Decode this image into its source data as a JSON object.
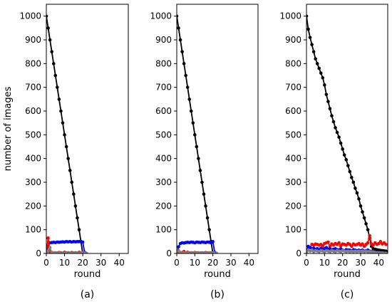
{
  "chart_data": [
    {
      "type": "line",
      "caption": "(a)",
      "xlabel": "round",
      "ylabel": "number of images",
      "xlim": [
        0,
        45
      ],
      "ylim": [
        0,
        1050
      ],
      "xticks": [
        0,
        10,
        20,
        30,
        40
      ],
      "yticks": [
        0,
        100,
        200,
        300,
        400,
        500,
        600,
        700,
        800,
        900,
        1000
      ],
      "grid": false,
      "series": [
        {
          "color": "#000000",
          "x": [
            0,
            1,
            2,
            3,
            4,
            5,
            6,
            7,
            8,
            9,
            10,
            11,
            12,
            13,
            14,
            15,
            16,
            17,
            18,
            19,
            20,
            21,
            22
          ],
          "y": [
            1000,
            950,
            900,
            850,
            800,
            750,
            700,
            650,
            600,
            550,
            500,
            450,
            400,
            350,
            300,
            250,
            200,
            150,
            100,
            50,
            0,
            0,
            0
          ]
        },
        {
          "color": "#0000ff",
          "x": [
            0,
            1,
            2,
            3,
            4,
            5,
            6,
            7,
            8,
            9,
            10,
            11,
            12,
            13,
            14,
            15,
            16,
            17,
            18,
            19,
            20,
            21,
            22
          ],
          "y": [
            0,
            30,
            45,
            46,
            47,
            46,
            48,
            47,
            48,
            49,
            48,
            50,
            49,
            50,
            48,
            50,
            49,
            50,
            50,
            50,
            48,
            5,
            0
          ]
        },
        {
          "color": "#ff0000",
          "x": [
            0,
            1,
            2,
            3,
            4,
            5,
            6,
            7,
            8,
            9,
            10,
            11,
            12,
            13,
            14,
            15,
            16,
            17,
            18,
            19,
            20,
            21,
            22
          ],
          "y": [
            0,
            65,
            5,
            4,
            2,
            3,
            2,
            4,
            3,
            2,
            5,
            2,
            3,
            2,
            4,
            2,
            3,
            2,
            5,
            3,
            2,
            0,
            0
          ]
        },
        {
          "color": "#808080",
          "x": [
            0,
            1,
            2,
            3,
            4,
            5,
            6,
            7,
            8,
            9,
            10,
            11,
            12,
            13,
            14,
            15,
            16,
            17,
            18,
            19,
            20,
            21,
            22
          ],
          "y": [
            0,
            10,
            25,
            4,
            3,
            2,
            1,
            2,
            1,
            2,
            1,
            2,
            1,
            2,
            1,
            2,
            1,
            2,
            1,
            2,
            2,
            2,
            0
          ]
        }
      ]
    },
    {
      "type": "line",
      "caption": "(b)",
      "xlabel": "round",
      "ylabel": "",
      "xlim": [
        0,
        45
      ],
      "ylim": [
        0,
        1050
      ],
      "xticks": [
        0,
        10,
        20,
        30,
        40
      ],
      "yticks": [
        0,
        100,
        200,
        300,
        400,
        500,
        600,
        700,
        800,
        900,
        1000
      ],
      "grid": false,
      "series": [
        {
          "color": "#000000",
          "x": [
            0,
            1,
            2,
            3,
            4,
            5,
            6,
            7,
            8,
            9,
            10,
            11,
            12,
            13,
            14,
            15,
            16,
            17,
            18,
            19,
            20,
            21,
            22
          ],
          "y": [
            1000,
            950,
            900,
            850,
            800,
            750,
            700,
            650,
            600,
            550,
            500,
            450,
            400,
            350,
            300,
            250,
            200,
            150,
            100,
            50,
            0,
            0,
            0
          ]
        },
        {
          "color": "#0000ff",
          "x": [
            0,
            1,
            2,
            3,
            4,
            5,
            6,
            7,
            8,
            9,
            10,
            11,
            12,
            13,
            14,
            15,
            16,
            17,
            18,
            19,
            20,
            21,
            22
          ],
          "y": [
            0,
            28,
            42,
            45,
            44,
            46,
            47,
            46,
            48,
            47,
            45,
            48,
            47,
            46,
            48,
            47,
            46,
            48,
            47,
            45,
            50,
            5,
            0
          ]
        },
        {
          "color": "#ff0000",
          "x": [
            0,
            1,
            2,
            3,
            4,
            5,
            6,
            7,
            8,
            9,
            10,
            11,
            12,
            13,
            14,
            15,
            16,
            17,
            18,
            19,
            20,
            21,
            22
          ],
          "y": [
            0,
            6,
            3,
            4,
            8,
            3,
            5,
            2,
            3,
            2,
            4,
            2,
            3,
            2,
            3,
            2,
            4,
            2,
            3,
            2,
            2,
            0,
            0
          ]
        },
        {
          "color": "#808080",
          "x": [
            0,
            1,
            2,
            3,
            4,
            5,
            6,
            7,
            8,
            9,
            10,
            11,
            12,
            13,
            14,
            15,
            16,
            17,
            18,
            19,
            20,
            21,
            22
          ],
          "y": [
            0,
            12,
            4,
            3,
            2,
            3,
            2,
            1,
            2,
            1,
            2,
            1,
            2,
            1,
            2,
            1,
            2,
            1,
            2,
            1,
            2,
            2,
            0
          ]
        }
      ]
    },
    {
      "type": "line",
      "caption": "(c)",
      "xlabel": "round",
      "ylabel": "",
      "xlim": [
        0,
        45
      ],
      "ylim": [
        0,
        1050
      ],
      "xticks": [
        0,
        10,
        20,
        30,
        40
      ],
      "yticks": [
        0,
        100,
        200,
        300,
        400,
        500,
        600,
        700,
        800,
        900,
        1000
      ],
      "grid": false,
      "series": [
        {
          "color": "#000000",
          "x": [
            0,
            1,
            2,
            3,
            4,
            5,
            6,
            7,
            8,
            9,
            10,
            11,
            12,
            13,
            14,
            15,
            16,
            17,
            18,
            19,
            20,
            21,
            22,
            23,
            24,
            25,
            26,
            27,
            28,
            29,
            30,
            31,
            32,
            33,
            34,
            35,
            36,
            37,
            38,
            39,
            40,
            41,
            42,
            43,
            44
          ],
          "y": [
            1000,
            945,
            910,
            880,
            850,
            820,
            800,
            780,
            760,
            740,
            710,
            670,
            640,
            610,
            580,
            555,
            530,
            510,
            490,
            465,
            440,
            415,
            395,
            370,
            345,
            320,
            300,
            275,
            255,
            230,
            200,
            175,
            150,
            125,
            100,
            65,
            30,
            20,
            18,
            16,
            14,
            13,
            12,
            11,
            10
          ]
        },
        {
          "color": "#ff0000",
          "x": [
            0,
            1,
            2,
            3,
            4,
            5,
            6,
            7,
            8,
            9,
            10,
            11,
            12,
            13,
            14,
            15,
            16,
            17,
            18,
            19,
            20,
            21,
            22,
            23,
            24,
            25,
            26,
            27,
            28,
            29,
            30,
            31,
            32,
            33,
            34,
            35,
            36,
            37,
            38,
            39,
            40,
            41,
            42,
            43,
            44
          ],
          "y": [
            0,
            20,
            25,
            38,
            35,
            40,
            38,
            35,
            38,
            32,
            42,
            45,
            48,
            30,
            40,
            35,
            42,
            38,
            45,
            32,
            40,
            38,
            35,
            42,
            38,
            30,
            40,
            36,
            38,
            42,
            35,
            40,
            30,
            38,
            45,
            75,
            40,
            35,
            45,
            38,
            42,
            50,
            40,
            45,
            38
          ]
        },
        {
          "color": "#0000ff",
          "x": [
            0,
            1,
            2,
            3,
            4,
            5,
            6,
            7,
            8,
            9,
            10,
            11,
            12,
            13,
            14,
            15,
            16,
            17,
            18,
            19,
            20,
            21,
            22,
            23,
            24,
            25,
            26,
            27,
            28,
            29,
            30,
            31,
            32,
            33,
            34,
            35,
            36,
            37,
            38,
            39,
            40,
            41,
            42,
            43,
            44
          ],
          "y": [
            0,
            30,
            25,
            20,
            22,
            18,
            20,
            15,
            22,
            18,
            20,
            25,
            18,
            20,
            15,
            18,
            20,
            16,
            15,
            20,
            14,
            12,
            16,
            15,
            14,
            12,
            16,
            14,
            12,
            14,
            12,
            14,
            10,
            12,
            14,
            10,
            8,
            6,
            5,
            4,
            3,
            2,
            2,
            1,
            0
          ]
        },
        {
          "color": "#808080",
          "x": [
            0,
            1,
            2,
            3,
            4,
            5,
            6,
            7,
            8,
            9,
            10,
            11,
            12,
            13,
            14,
            15,
            16,
            17,
            18,
            19,
            20,
            21,
            22,
            23,
            24,
            25,
            26,
            27,
            28,
            29,
            30,
            31,
            32,
            33,
            34,
            35,
            36,
            37,
            38,
            39,
            40,
            41,
            42,
            43,
            44
          ],
          "y": [
            0,
            15,
            10,
            14,
            8,
            12,
            10,
            8,
            12,
            10,
            8,
            12,
            10,
            8,
            12,
            10,
            8,
            12,
            10,
            8,
            12,
            10,
            8,
            10,
            8,
            10,
            8,
            10,
            8,
            10,
            8,
            10,
            8,
            10,
            8,
            8,
            6,
            5,
            4,
            3,
            3,
            2,
            2,
            1,
            1
          ]
        }
      ]
    }
  ]
}
